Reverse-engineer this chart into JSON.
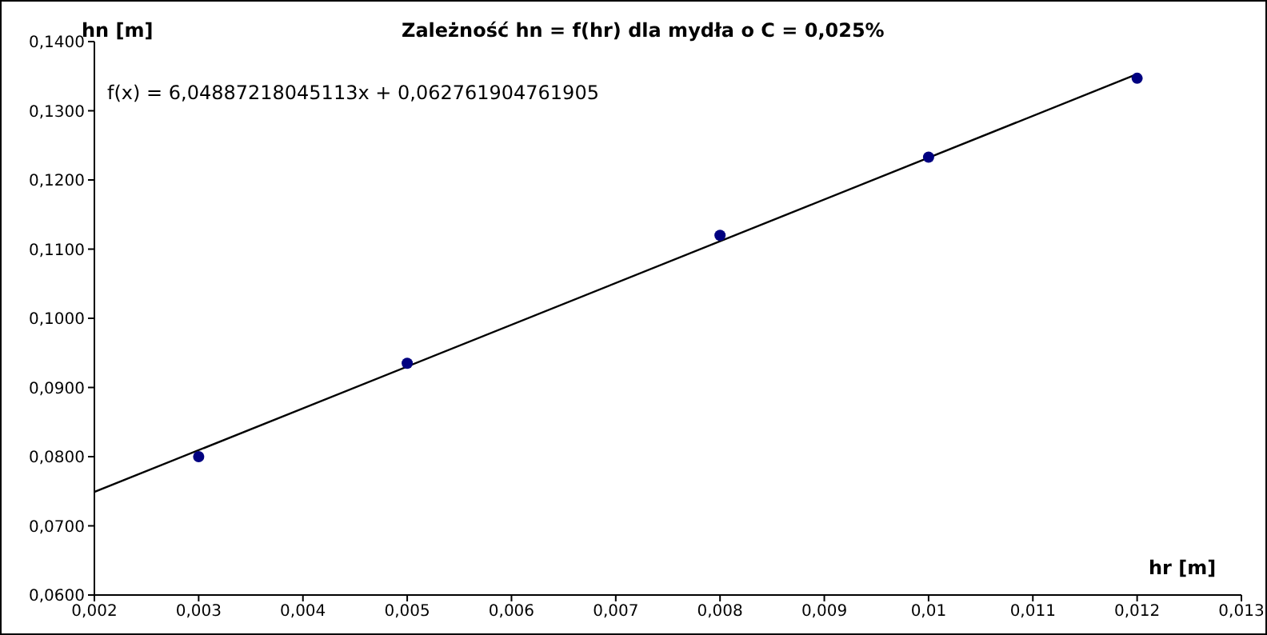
{
  "chart_data": {
    "type": "scatter",
    "title": "Zależność hn = f(hr) dla mydła o C = 0,025%",
    "xlabel": "hr [m]",
    "ylabel": "hn [m]",
    "annotations": [
      "f(x) = 6,04887218045113x + 0,062761904761905"
    ],
    "x": [
      0.003,
      0.005,
      0.008,
      0.01,
      0.012
    ],
    "series": [
      {
        "color": "#000080",
        "marker": "circle",
        "values": [
          0.08,
          0.0935,
          0.112,
          0.1233,
          0.1347
        ]
      },
      {
        "type": "line",
        "color": "#000000",
        "marker": "none",
        "line_style": "solid",
        "x": [
          0.002,
          0.012
        ],
        "values": [
          0.0749,
          0.1353
        ]
      }
    ],
    "xlim": [
      0.002,
      0.013
    ],
    "xticks": [
      {
        "value": 0.002,
        "label": "0,002"
      },
      {
        "value": 0.003,
        "label": "0,003"
      },
      {
        "value": 0.004,
        "label": "0,004"
      },
      {
        "value": 0.005,
        "label": "0,005"
      },
      {
        "value": 0.006,
        "label": "0,006"
      },
      {
        "value": 0.007,
        "label": "0,007"
      },
      {
        "value": 0.008,
        "label": "0,008"
      },
      {
        "value": 0.009,
        "label": "0,009"
      },
      {
        "value": 0.01,
        "label": "0,01"
      },
      {
        "value": 0.011,
        "label": "0,011"
      },
      {
        "value": 0.012,
        "label": "0,012"
      },
      {
        "value": 0.013,
        "label": "0,013"
      }
    ],
    "ylim": [
      0.06,
      0.14
    ],
    "yticks": [
      {
        "value": 0.06,
        "label": "0,0600"
      },
      {
        "value": 0.07,
        "label": "0,0700"
      },
      {
        "value": 0.08,
        "label": "0,0800"
      },
      {
        "value": 0.09,
        "label": "0,0900"
      },
      {
        "value": 0.1,
        "label": "0,1000"
      },
      {
        "value": 0.11,
        "label": "0,1100"
      },
      {
        "value": 0.12,
        "label": "0,1200"
      },
      {
        "value": 0.13,
        "label": "0,1300"
      },
      {
        "value": 0.14,
        "label": "0,1400"
      }
    ],
    "grid": false,
    "legend": false
  }
}
